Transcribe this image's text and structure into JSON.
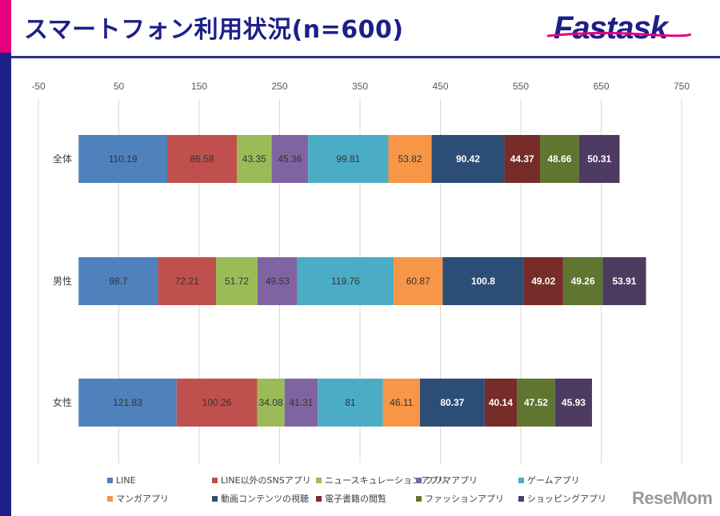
{
  "header": {
    "title": "スマートフォン利用状況(n=600)",
    "logo_text": "Fastask"
  },
  "watermark": "ReseMom",
  "colors": {
    "accent": "#e5007e",
    "brand": "#1d2088"
  },
  "chart_data": {
    "type": "bar",
    "orientation": "horizontal",
    "stacked": true,
    "title": "",
    "xlabel": "",
    "ylabel": "",
    "xlim": [
      -50,
      750
    ],
    "x_ticks": [
      -50,
      50,
      150,
      250,
      350,
      450,
      550,
      650,
      750
    ],
    "x_tick_labels": [
      "-50",
      "50",
      "150",
      "250",
      "350",
      "450",
      "550",
      "650",
      "750"
    ],
    "x_axis_position": "top",
    "grid": true,
    "legend_position": "bottom",
    "categories": [
      "全体",
      "男性",
      "女性"
    ],
    "series": [
      {
        "name": "LINE",
        "color": "#4f81bd",
        "label_color": "#333333",
        "values": [
          110.19,
          98.7,
          121.83
        ]
      },
      {
        "name": "LINE以外のSNSアプリ",
        "color": "#c0504d",
        "label_color": "#333333",
        "values": [
          86.58,
          72.21,
          100.26
        ]
      },
      {
        "name": "ニュースキュレーションアプリ",
        "color": "#9bbb59",
        "label_color": "#333333",
        "values": [
          43.35,
          51.72,
          34.08
        ]
      },
      {
        "name": "フリマアプリ",
        "color": "#8064a2",
        "label_color": "#333333",
        "values": [
          45.36,
          49.53,
          41.31
        ]
      },
      {
        "name": "ゲームアプリ",
        "color": "#4bacc6",
        "label_color": "#333333",
        "values": [
          99.81,
          119.76,
          81
        ]
      },
      {
        "name": "マンガアプリ",
        "color": "#f79646",
        "label_color": "#333333",
        "values": [
          53.82,
          60.87,
          46.11
        ]
      },
      {
        "name": "動画コンテンツの視聴",
        "color": "#2c4d75",
        "label_color": "#ffffff",
        "values": [
          90.42,
          100.8,
          80.37
        ]
      },
      {
        "name": "電子書籍の閲覧",
        "color": "#772c2a",
        "label_color": "#ffffff",
        "values": [
          44.37,
          49.02,
          40.14
        ]
      },
      {
        "name": "ファッションアプリ",
        "color": "#5f7530",
        "label_color": "#ffffff",
        "values": [
          48.66,
          49.26,
          47.52
        ]
      },
      {
        "name": "ショッピングアプリ",
        "color": "#4d3b62",
        "label_color": "#ffffff",
        "values": [
          50.31,
          53.91,
          45.93
        ]
      }
    ],
    "value_labels": [
      [
        "110.19",
        "86.58",
        "43.35",
        "45.36",
        "99.81",
        "53.82",
        "90.42",
        "44.37",
        "48.66",
        "50.31"
      ],
      [
        "98.7",
        "72.21",
        "51.72",
        "49.53",
        "119.76",
        "60.87",
        "100.8",
        "49.02",
        "49.26",
        "53.91"
      ],
      [
        "121.83",
        "100.26",
        "34.08",
        "41.31",
        "81",
        "46.11",
        "80.37",
        "40.14",
        "47.52",
        "45.93"
      ]
    ]
  }
}
